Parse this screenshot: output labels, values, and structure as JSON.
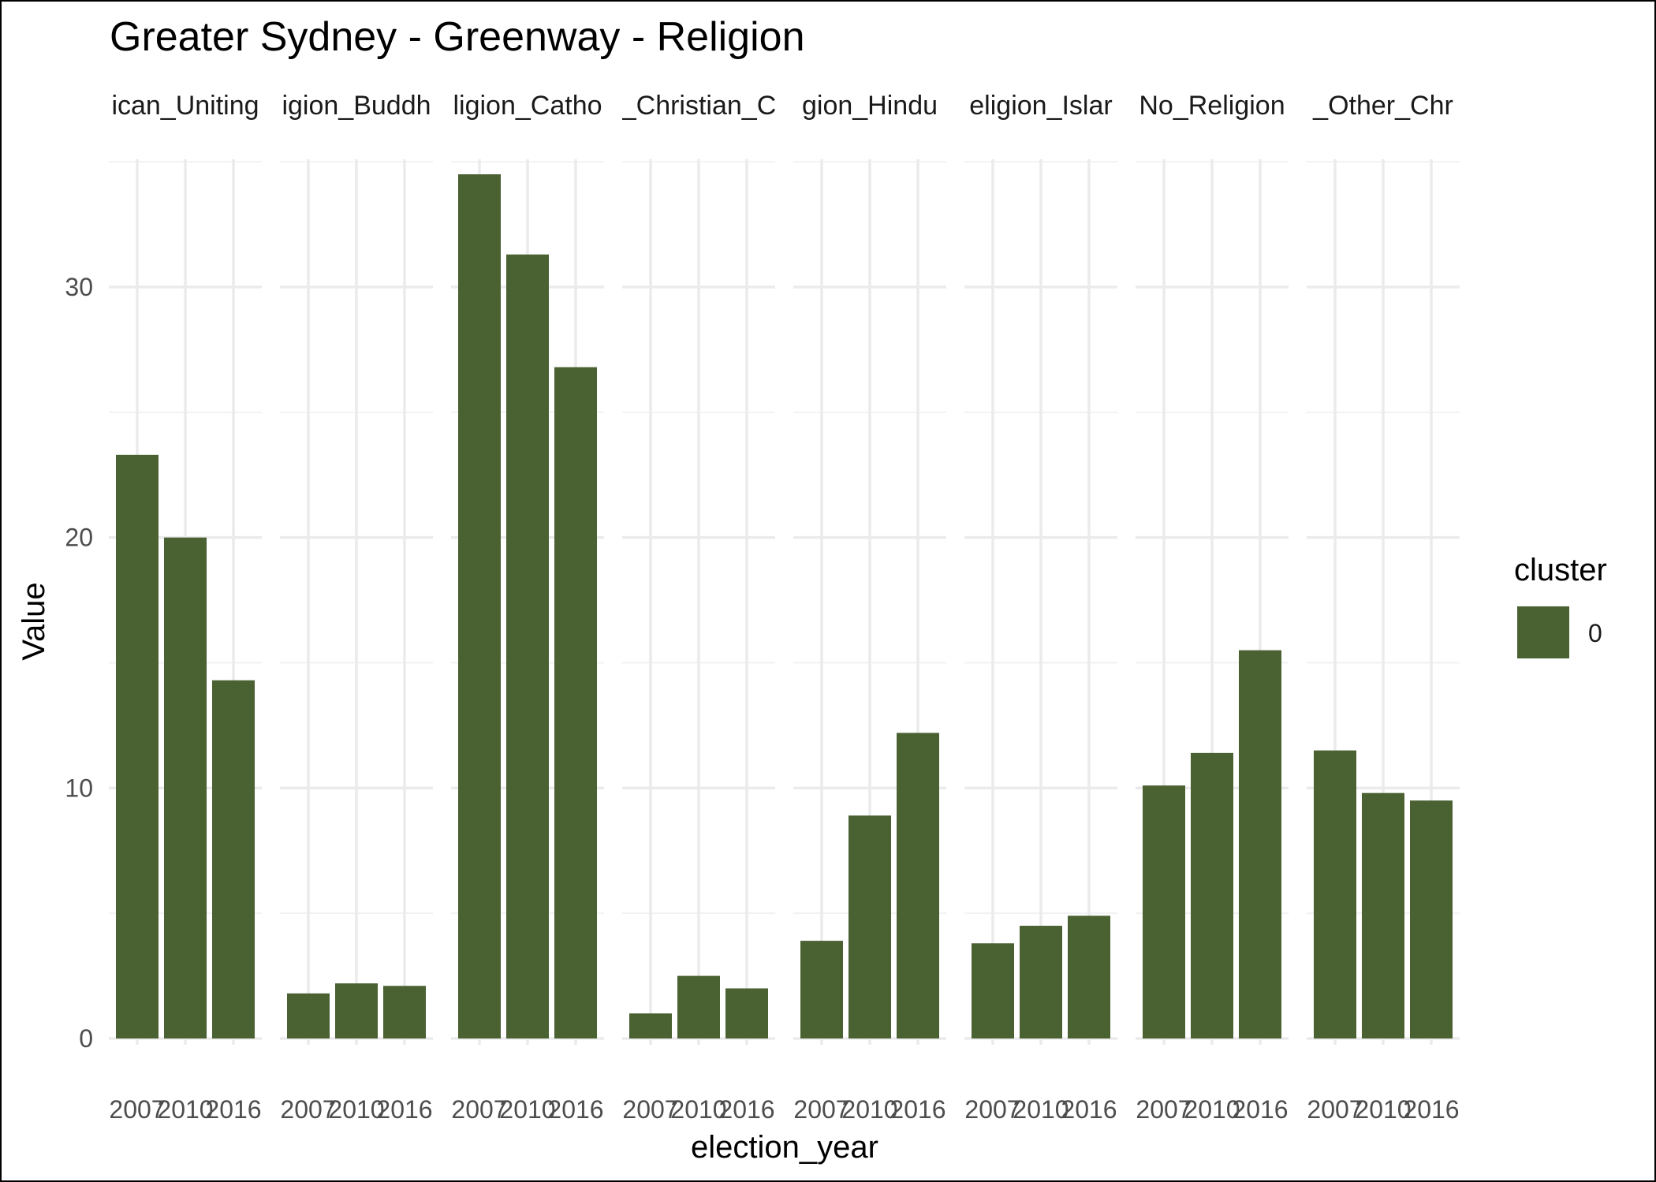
{
  "chart_data": {
    "type": "bar",
    "title": "Greater Sydney - Greenway - Religion",
    "xlabel": "election_year",
    "ylabel": "Value",
    "ylim": [
      0,
      35
    ],
    "yticks": [
      0,
      10,
      20,
      30
    ],
    "grid": true,
    "legend": {
      "title": "cluster",
      "position": "right",
      "entries": [
        "0"
      ]
    },
    "bar_color": "#4a6132",
    "x": [
      "2007",
      "2010",
      "2016"
    ],
    "panels": [
      {
        "label": "ican_Uniting",
        "values": [
          23.3,
          20.0,
          14.3
        ]
      },
      {
        "label": "igion_Buddh",
        "values": [
          1.8,
          2.2,
          2.1
        ]
      },
      {
        "label": "ligion_Catho",
        "values": [
          34.5,
          31.3,
          26.8
        ]
      },
      {
        "label": "_Christian_C",
        "values": [
          1.0,
          2.5,
          2.0
        ]
      },
      {
        "label": "gion_Hindu",
        "values": [
          3.9,
          8.9,
          12.2
        ]
      },
      {
        "label": "eligion_Islar",
        "values": [
          3.8,
          4.5,
          4.9
        ]
      },
      {
        "label": "No_Religion",
        "values": [
          10.1,
          11.4,
          15.5
        ]
      },
      {
        "label": "_Other_Chr",
        "values": [
          11.5,
          9.8,
          9.5
        ]
      }
    ]
  }
}
